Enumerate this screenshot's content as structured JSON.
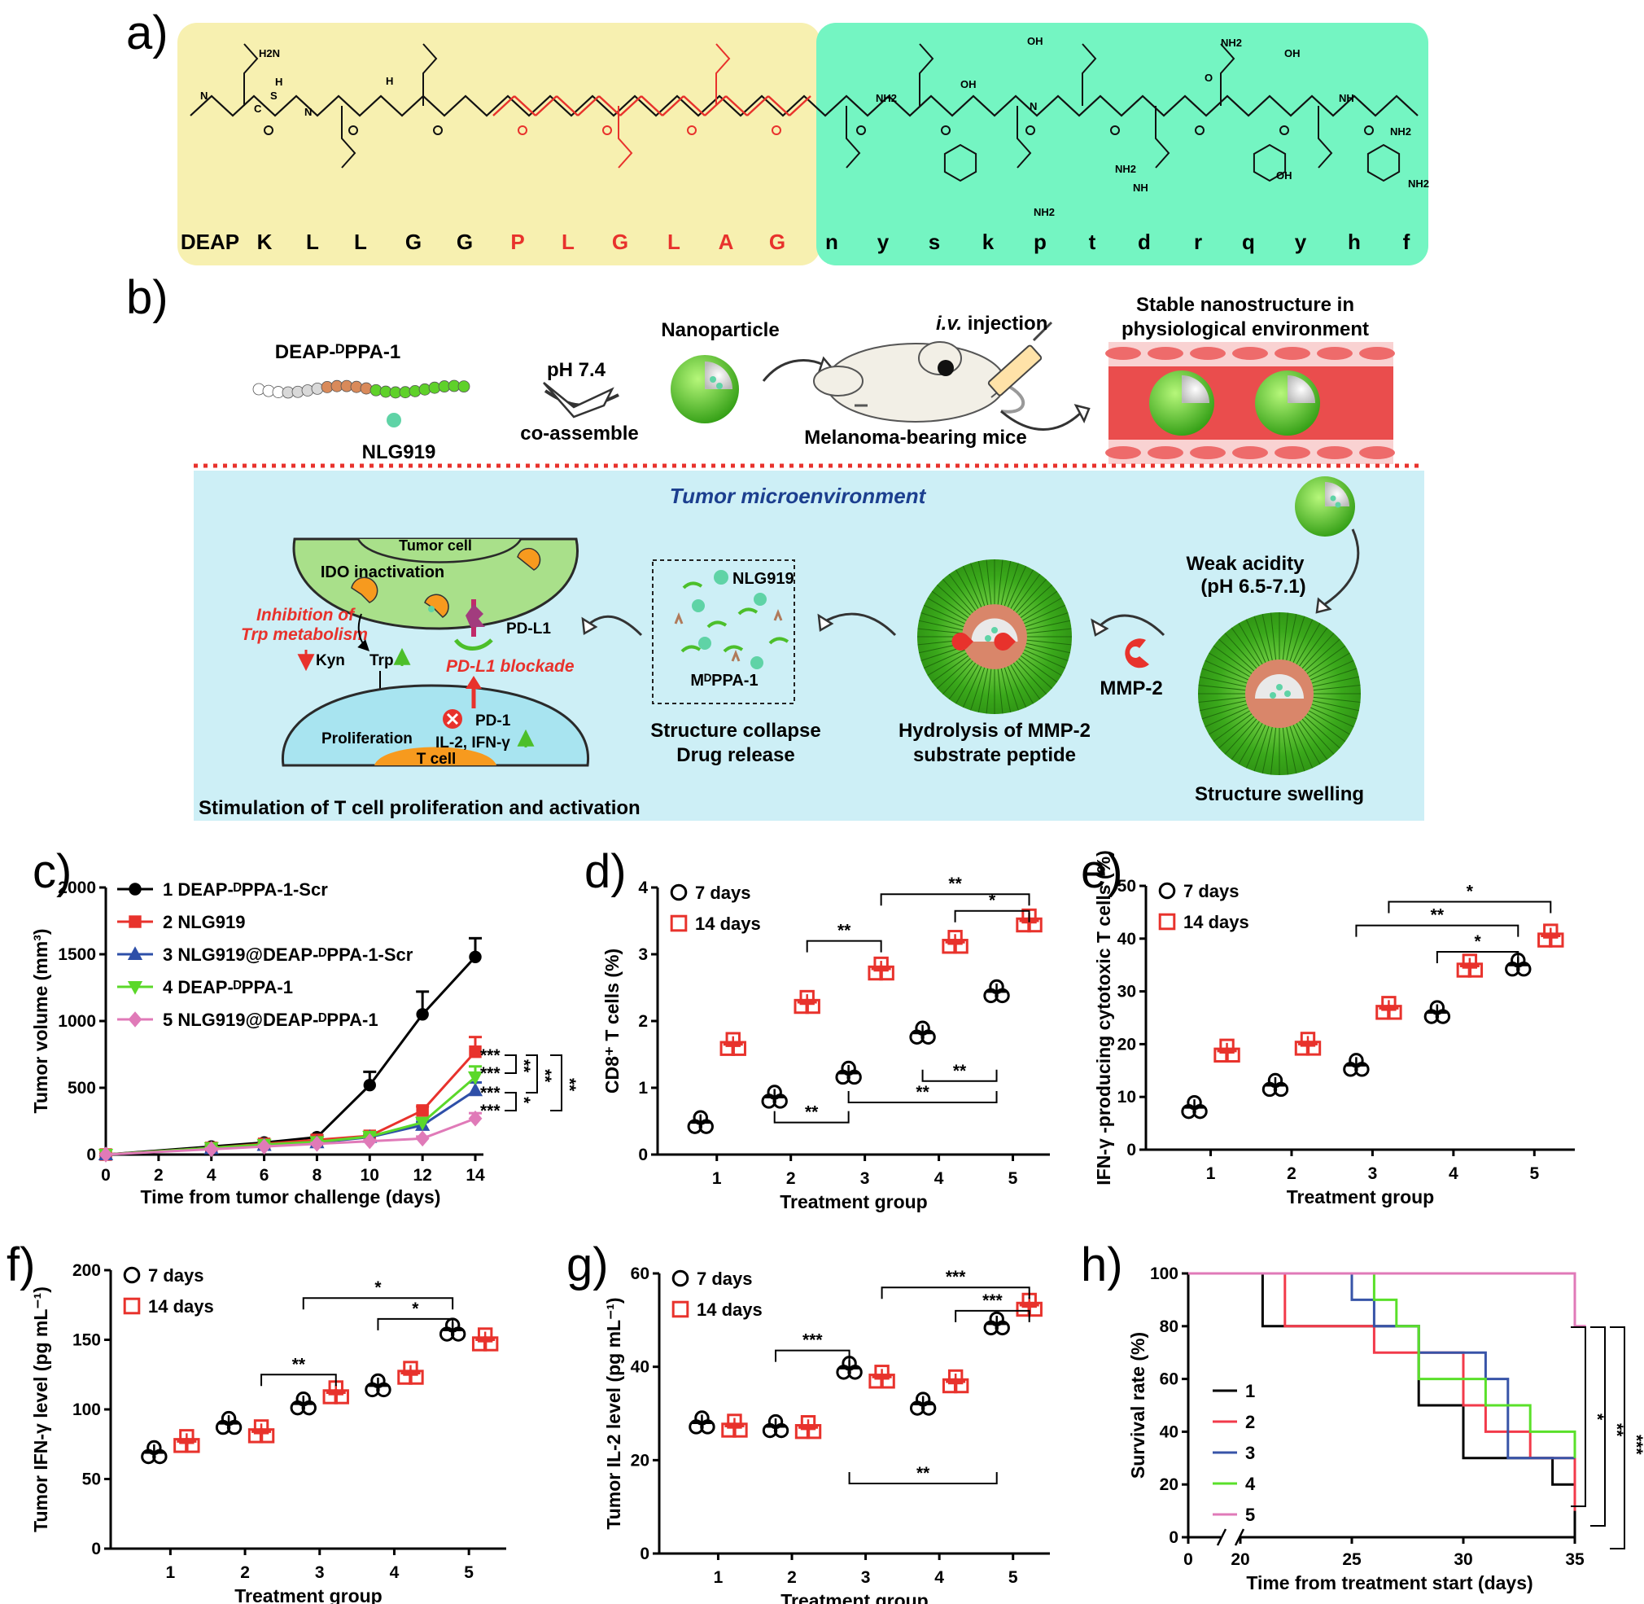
{
  "panel_labels": [
    "a)",
    "b)",
    "c)",
    "d)",
    "e)",
    "f)",
    "g)",
    "h)"
  ],
  "panel_a": {
    "sequence_yellow": [
      "DEAP",
      "K",
      "L",
      "L",
      "G",
      "G",
      "P",
      "L",
      "G",
      "L",
      "A",
      "G"
    ],
    "sequence_yellow_red_from": 6,
    "sequence_green": [
      "n",
      "y",
      "s",
      "k",
      "p",
      "t",
      "d",
      "r",
      "q",
      "y",
      "h",
      "f"
    ],
    "structure_labels": [
      "H2N",
      "N",
      "C",
      "S",
      "H",
      "N",
      "H",
      "OH",
      "NH2",
      "OH",
      "NH2",
      "NH2",
      "OH",
      "OH",
      "N",
      "NH",
      "NH2",
      "O",
      "NH2",
      "NH",
      "NH2"
    ],
    "colors": {
      "yellow_box": "#f7f0b0",
      "green_box": "#74f5c2",
      "red_residues": "#e8322c"
    }
  },
  "panel_b": {
    "peptide_label": "DEAP-ᴰPPA-1",
    "drug_label": "NLG919",
    "arrow1_top": "pH 7.4",
    "arrow1_bottom": "co-assemble",
    "nanoparticle_label": "Nanoparticle",
    "injection_label_italic": "i.v.",
    "injection_label": " injection",
    "mice_label": "Melanoma-bearing mice",
    "vessel_label_1": "Stable nanostructure in",
    "vessel_label_2": "physiological environment",
    "tme_title": "Tumor microenvironment",
    "acidity_1": "Weak acidity",
    "acidity_2": "(pH 6.5-7.1)",
    "swelling_label": "Structure swelling",
    "mmp_label": "MMP-2",
    "hydrolysis_1": "Hydrolysis of MMP-2",
    "hydrolysis_2": "substrate peptide",
    "box_nlg": "NLG919",
    "box_peptide": "MᴰPPA-1",
    "collapse_1": "Structure collapse",
    "collapse_2": "Drug release",
    "tumor_cell": "Tumor cell",
    "ido": "IDO inactivation",
    "inhibition_1": "Inhibition of",
    "inhibition_2": "Trp metabolism",
    "pdl1": "PD-L1",
    "pdl1_blockade": "PD-L1 blockade",
    "kyn": "Kyn",
    "trp": "Trp",
    "pd1": "PD-1",
    "proliferation": "Proliferation",
    "cytokines": "IL-2, IFN-γ",
    "tcell": "T cell",
    "stimulation": "Stimulation of T cell proliferation and activation",
    "colors": {
      "tme_bg": "#cdeff6",
      "dotted_line": "#e8322c",
      "tumor_cell": "#a9e08a",
      "t_cell_body": "#a8e4f0",
      "t_cell_nucleus": "#f79a1e"
    }
  },
  "chart_data": [
    {
      "panel": "c",
      "type": "line",
      "xlabel": "Time from tumor challenge (days)",
      "ylabel": "Tumor volume (mm³)",
      "xlim": [
        0,
        14
      ],
      "ylim": [
        0,
        2000
      ],
      "xticks": [
        0,
        2,
        4,
        6,
        8,
        10,
        12,
        14
      ],
      "yticks": [
        0,
        500,
        1000,
        1500,
        2000
      ],
      "x": [
        0,
        4,
        6,
        8,
        10,
        12,
        14
      ],
      "series": [
        {
          "name": "1 DEAP-ᴰPPA-1-Scr",
          "color": "#000000",
          "marker": "circle",
          "values": [
            0,
            60,
            90,
            130,
            520,
            1050,
            1480
          ],
          "errors": [
            0,
            10,
            10,
            15,
            100,
            170,
            140
          ]
        },
        {
          "name": "2 NLG919",
          "color": "#e8322c",
          "marker": "square",
          "values": [
            0,
            50,
            80,
            110,
            140,
            330,
            770
          ],
          "errors": [
            0,
            8,
            8,
            10,
            15,
            30,
            110
          ]
        },
        {
          "name": "3 NLG919@DEAP-ᴰPPA-1-Scr",
          "color": "#2e4fa8",
          "marker": "triangle",
          "values": [
            0,
            45,
            70,
            90,
            130,
            220,
            480
          ],
          "errors": [
            0,
            8,
            8,
            10,
            15,
            25,
            60
          ]
        },
        {
          "name": "4 DEAP-ᴰPPA-1",
          "color": "#5bd82a",
          "marker": "triangle-down",
          "values": [
            0,
            50,
            75,
            95,
            135,
            240,
            580
          ],
          "errors": [
            0,
            8,
            8,
            10,
            15,
            25,
            80
          ]
        },
        {
          "name": "5 NLG919@DEAP-ᴰPPA-1",
          "color": "#e07ab8",
          "marker": "diamond",
          "values": [
            0,
            40,
            60,
            80,
            100,
            120,
            270
          ],
          "errors": [
            0,
            6,
            6,
            8,
            10,
            15,
            40
          ]
        }
      ],
      "significance": [
        "***",
        "**",
        "***",
        "**",
        "**",
        "***",
        "*",
        "***"
      ]
    },
    {
      "panel": "d",
      "type": "scatter",
      "xlabel": "Treatment group",
      "ylabel": "CD8⁺ T cells (%)",
      "ylim": [
        0,
        4
      ],
      "yticks": [
        0,
        1,
        2,
        3,
        4
      ],
      "categories": [
        "1",
        "2",
        "3",
        "4",
        "5"
      ],
      "series": [
        {
          "name": "7 days",
          "color": "#000000",
          "marker": "circle",
          "values": [
            0.48,
            0.86,
            1.22,
            1.82,
            2.44
          ]
        },
        {
          "name": "14 days",
          "color": "#e8322c",
          "marker": "square",
          "values": [
            1.65,
            2.28,
            2.78,
            3.18,
            3.5
          ]
        }
      ],
      "significance": [
        {
          "from": 5,
          "to": 2,
          "series": "14 days",
          "label": "**"
        },
        {
          "from": 4,
          "to": 2,
          "series": "14 days",
          "label": "*"
        },
        {
          "from": 2,
          "to": 3,
          "series": "14 days",
          "label": "**"
        },
        {
          "from": 2,
          "to": 3,
          "series": "7 days",
          "label": "**"
        },
        {
          "from": 4,
          "to": 5,
          "series": "7 days",
          "label": "**"
        },
        {
          "from": 3,
          "to": 5,
          "series": "7 days",
          "label": "**"
        }
      ]
    },
    {
      "panel": "e",
      "type": "scatter",
      "xlabel": "Treatment group",
      "ylabel": "IFN-γ -producing cytotoxic T cells (%)",
      "ylim": [
        0,
        50
      ],
      "yticks": [
        0,
        10,
        20,
        30,
        40,
        50
      ],
      "categories": [
        "1",
        "2",
        "3",
        "4",
        "5"
      ],
      "series": [
        {
          "name": "7 days",
          "color": "#000000",
          "marker": "circle",
          "values": [
            8,
            12.2,
            16,
            26,
            35
          ]
        },
        {
          "name": "14 days",
          "color": "#e8322c",
          "marker": "square",
          "values": [
            18.7,
            20,
            26.8,
            34.8,
            40.5
          ]
        }
      ],
      "significance": [
        "*",
        "**",
        "*"
      ]
    },
    {
      "panel": "f",
      "type": "scatter",
      "xlabel": "Treatment group",
      "ylabel": "Tumor IFN-γ level (pg mL⁻¹)",
      "ylim": [
        0,
        200
      ],
      "yticks": [
        0,
        50,
        100,
        150,
        200
      ],
      "categories": [
        "1",
        "2",
        "3",
        "4",
        "5"
      ],
      "series": [
        {
          "name": "7 days",
          "color": "#000000",
          "marker": "circle",
          "values": [
            69,
            90,
            104,
            117,
            157
          ]
        },
        {
          "name": "14 days",
          "color": "#e8322c",
          "marker": "square",
          "values": [
            77,
            84,
            112,
            126,
            150
          ]
        }
      ],
      "significance": [
        "*",
        "*",
        "**"
      ]
    },
    {
      "panel": "g",
      "type": "scatter",
      "xlabel": "Treatment group",
      "ylabel": "Tumor IL-2 level (pg mL⁻¹)",
      "ylim": [
        0,
        60
      ],
      "yticks": [
        0,
        20,
        40,
        60
      ],
      "categories": [
        "1",
        "2",
        "3",
        "4",
        "5"
      ],
      "series": [
        {
          "name": "7 days",
          "color": "#000000",
          "marker": "circle",
          "values": [
            28,
            27.2,
            39.7,
            32,
            49.2
          ]
        },
        {
          "name": "14 days",
          "color": "#e8322c",
          "marker": "square",
          "values": [
            27.3,
            27,
            37.8,
            36.8,
            53.2
          ]
        }
      ],
      "significance": [
        "***",
        "***",
        "***",
        "**"
      ]
    },
    {
      "panel": "h",
      "type": "line",
      "step": true,
      "xlabel": "Time from treatment start (days)",
      "ylabel": "Survival rate (%)",
      "ylim": [
        0,
        100
      ],
      "yticks": [
        0,
        20,
        40,
        60,
        80,
        100
      ],
      "xticks": [
        0,
        20,
        25,
        30,
        35
      ],
      "x_break": [
        0,
        20
      ],
      "series": [
        {
          "name": "1",
          "color": "#000000",
          "steps": [
            [
              0,
              100
            ],
            [
              21,
              80
            ],
            [
              23,
              80
            ],
            [
              28,
              50
            ],
            [
              30,
              30
            ],
            [
              34,
              20
            ],
            [
              35,
              0
            ]
          ]
        },
        {
          "name": "2",
          "color": "#f23a4a",
          "steps": [
            [
              0,
              100
            ],
            [
              22,
              80
            ],
            [
              26,
              70
            ],
            [
              30,
              50
            ],
            [
              31,
              40
            ],
            [
              33,
              30
            ],
            [
              35,
              10
            ]
          ]
        },
        {
          "name": "3",
          "color": "#3854a8",
          "steps": [
            [
              0,
              100
            ],
            [
              25,
              90
            ],
            [
              26,
              80
            ],
            [
              28,
              70
            ],
            [
              31,
              60
            ],
            [
              32,
              30
            ],
            [
              35,
              30
            ]
          ]
        },
        {
          "name": "4",
          "color": "#5ae02a",
          "steps": [
            [
              0,
              100
            ],
            [
              26,
              90
            ],
            [
              27,
              80
            ],
            [
              28,
              60
            ],
            [
              31,
              50
            ],
            [
              33,
              40
            ],
            [
              35,
              30
            ]
          ]
        },
        {
          "name": "5",
          "color": "#e07ab8",
          "steps": [
            [
              0,
              100
            ],
            [
              34,
              100
            ],
            [
              35,
              80
            ],
            [
              35.5,
              80
            ]
          ]
        }
      ],
      "significance": [
        "*",
        "**",
        "***"
      ]
    }
  ]
}
